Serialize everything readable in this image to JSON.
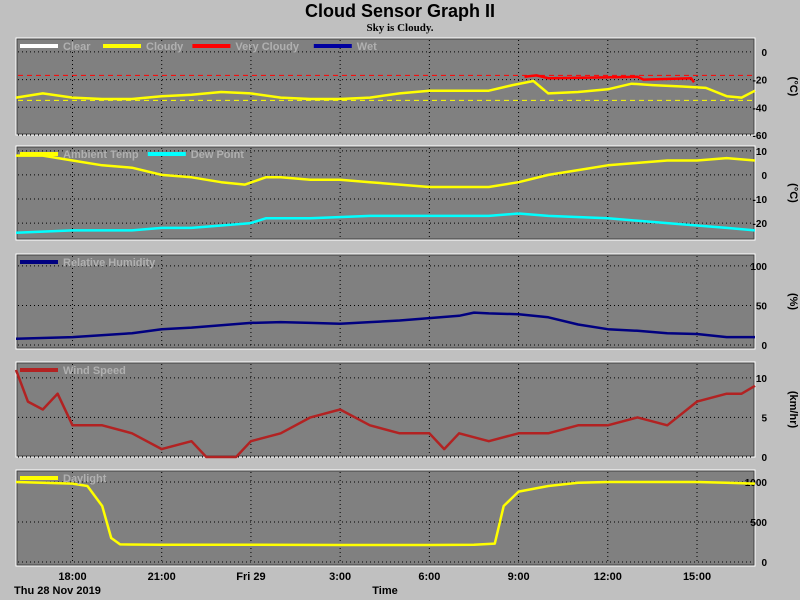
{
  "page": {
    "title": "Cloud Sensor Graph II",
    "subtitle": "Sky is Cloudy."
  },
  "colors": {
    "background": "#c0c0c0",
    "plot_bg": "#808080",
    "clear": "#ffffff",
    "cloudy": "#ffff00",
    "very_cloudy": "#ff0000",
    "wet": "#0000a0",
    "ambient": "#ffff00",
    "dew": "#00ffff",
    "humidity": "#000080",
    "wind": "#b22222",
    "daylight": "#ffff00"
  },
  "x_axis": {
    "label": "Time",
    "start_label": "Thu 28 Nov 2019",
    "ticks": [
      {
        "h": 18,
        "label": "18:00"
      },
      {
        "h": 21,
        "label": "21:00"
      },
      {
        "h": 24,
        "label": "Fri 29"
      },
      {
        "h": 27,
        "label": "3:00"
      },
      {
        "h": 30,
        "label": "6:00"
      },
      {
        "h": 33,
        "label": "9:00"
      },
      {
        "h": 36,
        "label": "12:00"
      },
      {
        "h": 39,
        "label": "15:00"
      }
    ],
    "range_hours": [
      16.1,
      40.95
    ]
  },
  "chart_data": [
    {
      "type": "line",
      "ylabel": "(°C)",
      "ylim": [
        -60,
        10
      ],
      "yticks": [
        0,
        -20,
        -40,
        -60
      ],
      "thresholds": [
        -17,
        -35
      ],
      "series": [
        {
          "name": "Clear",
          "color_key": "clear",
          "points": []
        },
        {
          "name": "Cloudy",
          "color_key": "cloudy",
          "points": [
            [
              16.1,
              -33
            ],
            [
              17,
              -30
            ],
            [
              18,
              -33
            ],
            [
              19,
              -34
            ],
            [
              20,
              -34
            ],
            [
              21,
              -32
            ],
            [
              22,
              -31
            ],
            [
              23,
              -29
            ],
            [
              24,
              -30
            ],
            [
              25,
              -33
            ],
            [
              26,
              -34
            ],
            [
              27,
              -34
            ],
            [
              28,
              -33
            ],
            [
              29,
              -30
            ],
            [
              30,
              -28
            ],
            [
              31,
              -28
            ],
            [
              32,
              -28
            ],
            [
              32.8,
              -24
            ],
            [
              33.5,
              -21
            ],
            [
              34,
              -30
            ],
            [
              35,
              -29
            ],
            [
              36,
              -27
            ],
            [
              36.8,
              -23
            ],
            [
              37.5,
              -24
            ],
            [
              38.5,
              -25
            ],
            [
              39.3,
              -26
            ],
            [
              40,
              -32
            ],
            [
              40.5,
              -33
            ],
            [
              40.95,
              -28
            ]
          ]
        },
        {
          "name": "Very Cloudy",
          "color_key": "very_cloudy",
          "points": [
            [
              33.2,
              -18
            ],
            [
              33.6,
              -17
            ],
            [
              34.0,
              -19
            ],
            [
              37.0,
              -18
            ],
            [
              37.2,
              -20
            ],
            [
              38.8,
              -19
            ],
            [
              38.9,
              -22
            ]
          ]
        },
        {
          "name": "Wet",
          "color_key": "wet",
          "points": []
        }
      ]
    },
    {
      "type": "line",
      "ylabel": "(°C)",
      "ylim": [
        -27,
        12
      ],
      "yticks": [
        10,
        0,
        -10,
        -20
      ],
      "series": [
        {
          "name": "Ambient Temp",
          "color_key": "ambient",
          "points": [
            [
              16.1,
              8
            ],
            [
              17,
              8
            ],
            [
              18,
              6
            ],
            [
              19,
              4
            ],
            [
              20,
              3
            ],
            [
              21,
              0
            ],
            [
              22,
              -1
            ],
            [
              23,
              -3
            ],
            [
              23.8,
              -4
            ],
            [
              24.5,
              -1
            ],
            [
              25,
              -1
            ],
            [
              26,
              -2
            ],
            [
              27,
              -2
            ],
            [
              28,
              -3
            ],
            [
              29,
              -4
            ],
            [
              30,
              -5
            ],
            [
              31,
              -5
            ],
            [
              32,
              -5
            ],
            [
              33,
              -3
            ],
            [
              34,
              0
            ],
            [
              35,
              2
            ],
            [
              36,
              4
            ],
            [
              37,
              5
            ],
            [
              38,
              6
            ],
            [
              39,
              6
            ],
            [
              40,
              7
            ],
            [
              40.95,
              6
            ]
          ]
        },
        {
          "name": "Dew Point",
          "color_key": "dew",
          "points": [
            [
              16.1,
              -24
            ],
            [
              18,
              -23
            ],
            [
              20,
              -23
            ],
            [
              21,
              -22
            ],
            [
              22,
              -22
            ],
            [
              23,
              -21
            ],
            [
              24,
              -20
            ],
            [
              24.5,
              -18
            ],
            [
              26,
              -18
            ],
            [
              28,
              -17
            ],
            [
              30,
              -17
            ],
            [
              32,
              -17
            ],
            [
              33,
              -16
            ],
            [
              34,
              -17
            ],
            [
              36,
              -18
            ],
            [
              38,
              -20
            ],
            [
              39,
              -21
            ],
            [
              40,
              -22
            ],
            [
              40.95,
              -23
            ]
          ]
        }
      ]
    },
    {
      "type": "line",
      "ylabel": "(%)",
      "ylim": [
        -5,
        115
      ],
      "yticks": [
        100,
        50,
        0
      ],
      "series": [
        {
          "name": "Relative Humidity",
          "color_key": "humidity",
          "points": [
            [
              16.1,
              8
            ],
            [
              18,
              10
            ],
            [
              20,
              15
            ],
            [
              21,
              20
            ],
            [
              22,
              22
            ],
            [
              23,
              25
            ],
            [
              24,
              28
            ],
            [
              25,
              29
            ],
            [
              26,
              28
            ],
            [
              27,
              27
            ],
            [
              28,
              29
            ],
            [
              29,
              31
            ],
            [
              30,
              34
            ],
            [
              31,
              37
            ],
            [
              31.5,
              41
            ],
            [
              32,
              40
            ],
            [
              33,
              39
            ],
            [
              34,
              35
            ],
            [
              35,
              26
            ],
            [
              36,
              20
            ],
            [
              37,
              18
            ],
            [
              38,
              15
            ],
            [
              39,
              14
            ],
            [
              40,
              10
            ],
            [
              40.95,
              10
            ]
          ]
        }
      ]
    },
    {
      "type": "line",
      "ylabel": "(km/hr)",
      "ylim": [
        0,
        12
      ],
      "yticks": [
        10,
        5,
        0
      ],
      "series": [
        {
          "name": "Wind Speed",
          "color_key": "wind",
          "points": [
            [
              16.1,
              11
            ],
            [
              16.5,
              7
            ],
            [
              17,
              6
            ],
            [
              17.5,
              8
            ],
            [
              18,
              4
            ],
            [
              19,
              4
            ],
            [
              20,
              3
            ],
            [
              21,
              1
            ],
            [
              22,
              2
            ],
            [
              22.5,
              0
            ],
            [
              23.5,
              0
            ],
            [
              24,
              2
            ],
            [
              25,
              3
            ],
            [
              26,
              5
            ],
            [
              27,
              6
            ],
            [
              28,
              4
            ],
            [
              29,
              3
            ],
            [
              30,
              3
            ],
            [
              30.5,
              1
            ],
            [
              31,
              3
            ],
            [
              32,
              2
            ],
            [
              33,
              3
            ],
            [
              34,
              3
            ],
            [
              35,
              4
            ],
            [
              36,
              4
            ],
            [
              37,
              5
            ],
            [
              38,
              4
            ],
            [
              39,
              7
            ],
            [
              40,
              8
            ],
            [
              40.5,
              8
            ],
            [
              40.95,
              9
            ]
          ]
        }
      ]
    },
    {
      "type": "line",
      "ylabel": "",
      "ylim": [
        -50,
        1150
      ],
      "yticks": [
        1000,
        500,
        0
      ],
      "series": [
        {
          "name": "Daylight",
          "color_key": "daylight",
          "points": [
            [
              16.1,
              1000
            ],
            [
              18,
              980
            ],
            [
              18.5,
              950
            ],
            [
              19,
              700
            ],
            [
              19.3,
              300
            ],
            [
              19.6,
              220
            ],
            [
              21,
              215
            ],
            [
              24,
              215
            ],
            [
              27,
              212
            ],
            [
              30,
              212
            ],
            [
              31.5,
              215
            ],
            [
              32.2,
              230
            ],
            [
              32.5,
              700
            ],
            [
              33,
              880
            ],
            [
              34,
              950
            ],
            [
              35,
              990
            ],
            [
              36,
              1000
            ],
            [
              38,
              1000
            ],
            [
              39,
              1000
            ],
            [
              40,
              990
            ],
            [
              40.95,
              980
            ]
          ]
        }
      ]
    }
  ]
}
